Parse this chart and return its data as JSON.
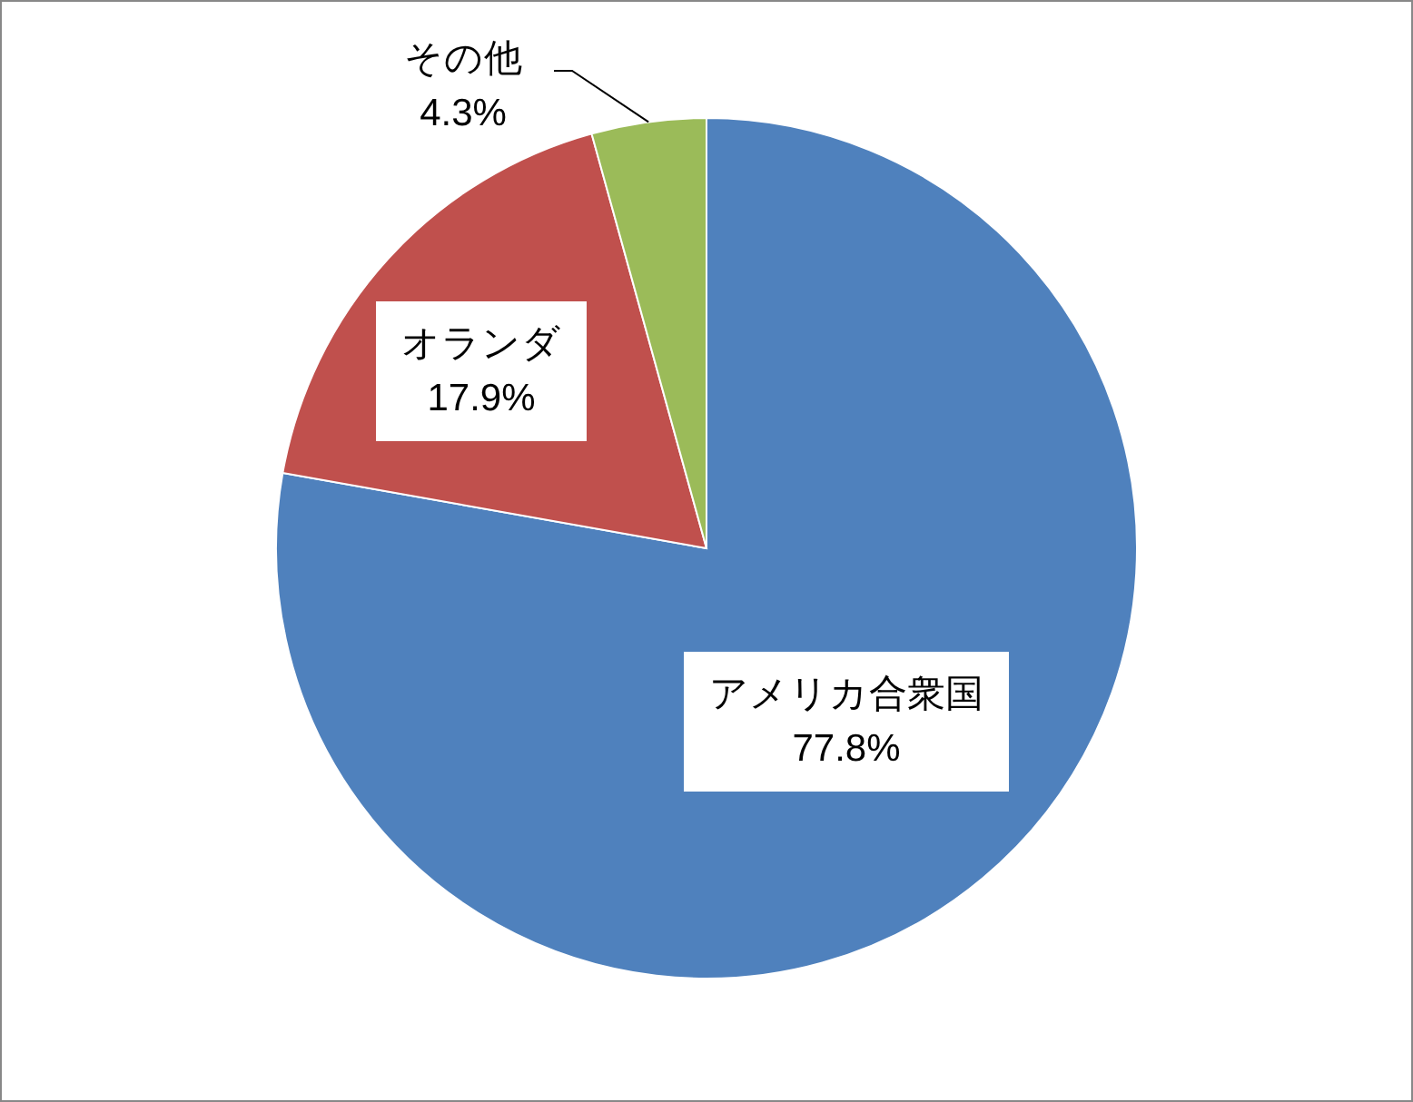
{
  "chart_data": {
    "type": "pie",
    "categories": [
      "アメリカ合衆国",
      "オランダ",
      "その他"
    ],
    "values": [
      77.8,
      17.9,
      4.3
    ],
    "colors": [
      "#4f81bd",
      "#c0504d",
      "#9bbb59"
    ],
    "value_labels": [
      "77.8%",
      "17.9%",
      "4.3%"
    ]
  }
}
